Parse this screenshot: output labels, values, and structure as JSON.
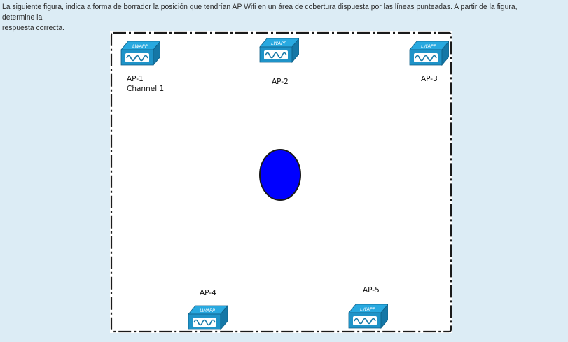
{
  "question": {
    "line1": "La siguiente figura, indica a forma de borrador la posición que tendrían AP Wifi en un área de cobertura dispuesta por las líneas punteadas. A partir de la figura, determine la",
    "line2": "respuesta correcta."
  },
  "diagram": {
    "device_brand": "LWAPP",
    "colors": {
      "device_top": "#28a9e0",
      "device_front": "#1f93c8",
      "device_side": "#1577a6",
      "marker_fill": "#0000ff",
      "border": "#1a1a1a"
    },
    "access_points": [
      {
        "name": "AP-1",
        "channel": "Channel 1"
      },
      {
        "name": "AP-2",
        "channel": ""
      },
      {
        "name": "AP-3",
        "channel": ""
      },
      {
        "name": "AP-4",
        "channel": ""
      },
      {
        "name": "AP-5",
        "channel": ""
      }
    ]
  }
}
